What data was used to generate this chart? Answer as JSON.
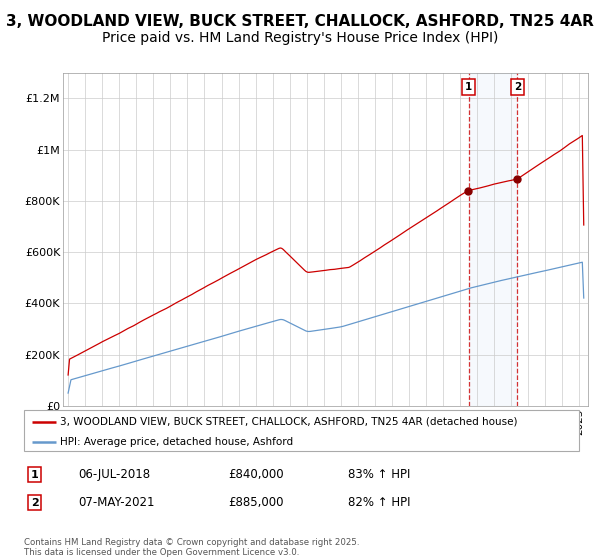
{
  "title": "3, WOODLAND VIEW, BUCK STREET, CHALLOCK, ASHFORD, TN25 4AR",
  "subtitle": "Price paid vs. HM Land Registry's House Price Index (HPI)",
  "red_label": "3, WOODLAND VIEW, BUCK STREET, CHALLOCK, ASHFORD, TN25 4AR (detached house)",
  "blue_label": "HPI: Average price, detached house, Ashford",
  "sale1_label": "1",
  "sale1_date": "06-JUL-2018",
  "sale1_price": "£840,000",
  "sale1_hpi": "83% ↑ HPI",
  "sale2_label": "2",
  "sale2_date": "07-MAY-2021",
  "sale2_price": "£885,000",
  "sale2_hpi": "82% ↑ HPI",
  "sale1_year": 2018.5,
  "sale2_year": 2021.35,
  "sale1_value": 840000,
  "sale2_value": 885000,
  "ylim": [
    0,
    1300000
  ],
  "xlim_start": 1995,
  "xlim_end": 2025.5,
  "footer": "Contains HM Land Registry data © Crown copyright and database right 2025.\nThis data is licensed under the Open Government Licence v3.0.",
  "background_color": "#ffffff",
  "red_color": "#cc0000",
  "blue_color": "#6699cc",
  "grid_color": "#cccccc",
  "title_fontsize": 11,
  "subtitle_fontsize": 10
}
